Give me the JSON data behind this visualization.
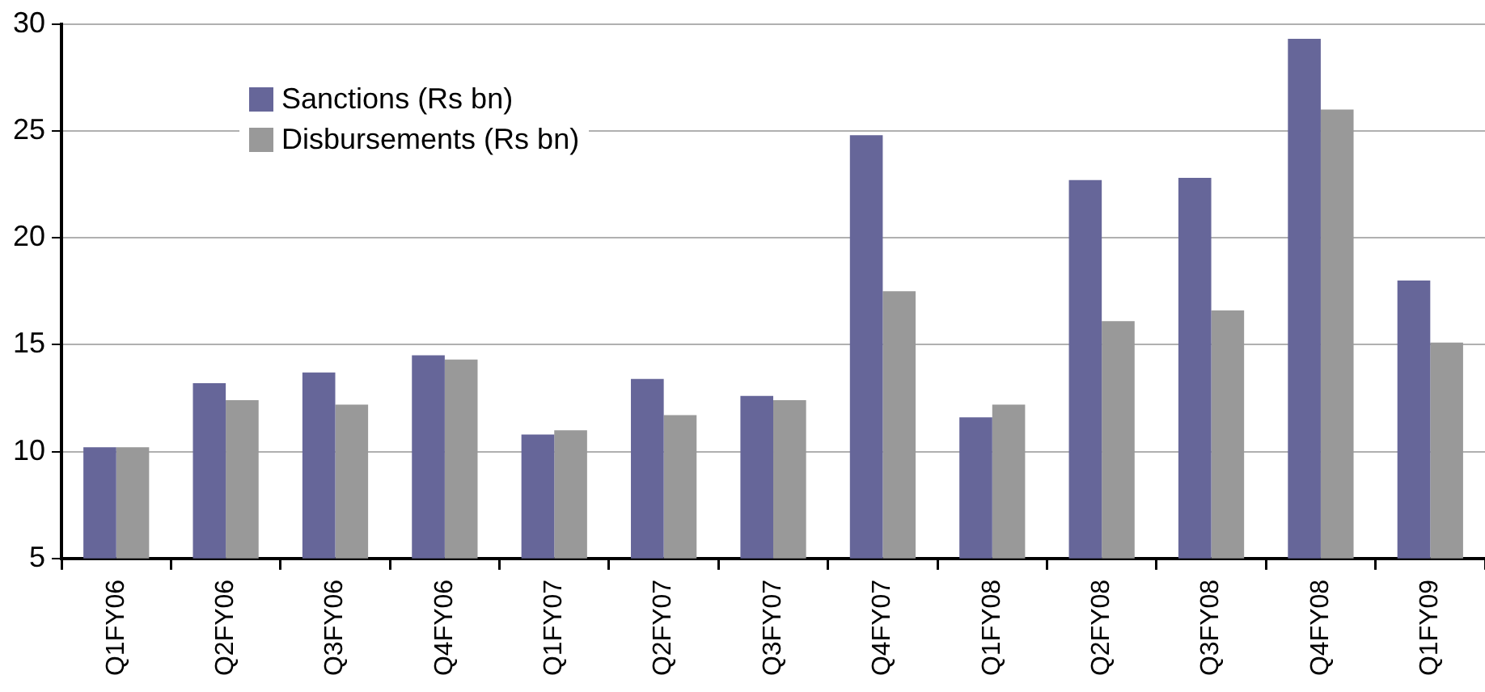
{
  "chart_data": {
    "type": "bar",
    "categories": [
      "Q1FY06",
      "Q2FY06",
      "Q3FY06",
      "Q4FY06",
      "Q1FY07",
      "Q2FY07",
      "Q3FY07",
      "Q4FY07",
      "Q1FY08",
      "Q2FY08",
      "Q3FY08",
      "Q4FY08",
      "Q1FY09"
    ],
    "series": [
      {
        "name": "Sanctions (Rs bn)",
        "color": "#666699",
        "values": [
          10.2,
          13.2,
          13.7,
          14.5,
          10.8,
          13.4,
          12.6,
          24.8,
          11.6,
          22.7,
          22.8,
          29.3,
          18.0
        ]
      },
      {
        "name": "Disbursements (Rs bn)",
        "color": "#999999",
        "values": [
          10.2,
          12.4,
          12.2,
          14.3,
          11.0,
          11.7,
          12.4,
          17.5,
          12.2,
          16.1,
          16.6,
          26.0,
          15.1
        ]
      }
    ],
    "ylim": [
      5,
      30
    ],
    "yticks": [
      5,
      10,
      15,
      20,
      25,
      30
    ],
    "grid": "y",
    "legend": "top left"
  }
}
